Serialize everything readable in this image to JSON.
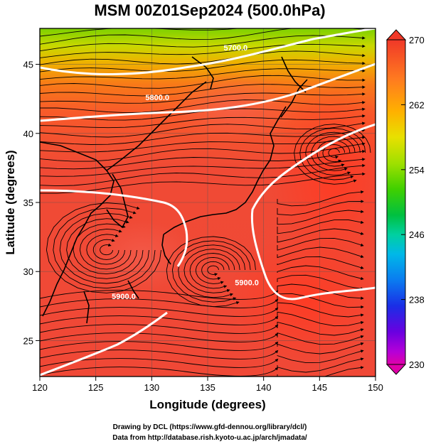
{
  "title": "MSM 00Z01Sep2024 (500.0hPa)",
  "x_axis": {
    "label": "Longitude (degrees)",
    "ticks": [
      120,
      125,
      130,
      135,
      140,
      145,
      150
    ],
    "range": [
      120,
      150
    ]
  },
  "y_axis": {
    "label": "Latitude  (degrees)",
    "ticks": [
      25,
      30,
      35,
      40,
      45
    ],
    "range": [
      22.4,
      47.6
    ]
  },
  "colorbar": {
    "ticks": [
      270,
      262,
      254,
      246,
      238,
      230
    ],
    "range": [
      230,
      270
    ],
    "colors": [
      "#e000a8",
      "#b400d8",
      "#6a00e0",
      "#1a2ee6",
      "#0a7cf0",
      "#00b8e8",
      "#00d0a0",
      "#00c040",
      "#40d000",
      "#a0e000",
      "#e8e000",
      "#ffb000",
      "#ff7a20",
      "#ff5030",
      "#f03828"
    ]
  },
  "contours": [
    {
      "label": "5700.0",
      "lat": 46,
      "lon": 137.5
    },
    {
      "label": "5800.0",
      "lat": 42.4,
      "lon": 130.5
    },
    {
      "label": "5900.0",
      "lat": 29,
      "lon": 138.5
    },
    {
      "label": "5900.0",
      "lat": 28,
      "lon": 127.5
    }
  ],
  "footer": {
    "line1": "Drawing by DCL (https://www.gfd-dennou.org/library/dcl/)",
    "line2": "Data from http://database.rish.kyoto-u.ac.jp/arch/jmadata/"
  },
  "legend_colors": {
    "field_base": "#f04a35",
    "field_high": "#f85030",
    "contour": "#ffffff",
    "coast": "#000000"
  }
}
